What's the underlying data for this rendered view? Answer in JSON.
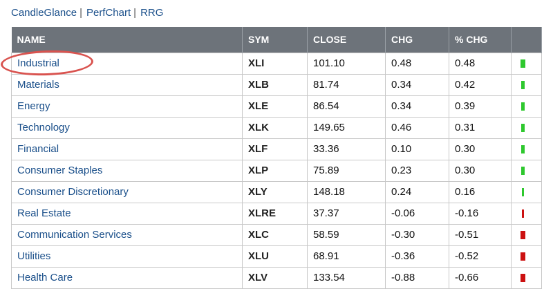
{
  "nav": {
    "links": [
      "CandleGlance",
      "PerfChart",
      "RRG"
    ],
    "separator": "|"
  },
  "table": {
    "headers": {
      "name": "NAME",
      "sym": "SYM",
      "close": "CLOSE",
      "chg": "CHG",
      "pchg": "% CHG"
    },
    "rows": [
      {
        "name": "Industrial",
        "sym": "XLI",
        "close": "101.10",
        "chg": "0.48",
        "pchg": "0.48",
        "color": "#2ec82e"
      },
      {
        "name": "Materials",
        "sym": "XLB",
        "close": "81.74",
        "chg": "0.34",
        "pchg": "0.42",
        "color": "#2ec82e"
      },
      {
        "name": "Energy",
        "sym": "XLE",
        "close": "86.54",
        "chg": "0.34",
        "pchg": "0.39",
        "color": "#2ec82e"
      },
      {
        "name": "Technology",
        "sym": "XLK",
        "close": "149.65",
        "chg": "0.46",
        "pchg": "0.31",
        "color": "#2ec82e"
      },
      {
        "name": "Financial",
        "sym": "XLF",
        "close": "33.36",
        "chg": "0.10",
        "pchg": "0.30",
        "color": "#2ec82e"
      },
      {
        "name": "Consumer Staples",
        "sym": "XLP",
        "close": "75.89",
        "chg": "0.23",
        "pchg": "0.30",
        "color": "#2ec82e"
      },
      {
        "name": "Consumer Discretionary",
        "sym": "XLY",
        "close": "148.18",
        "chg": "0.24",
        "pchg": "0.16",
        "color": "#2ec82e"
      },
      {
        "name": "Real Estate",
        "sym": "XLRE",
        "close": "37.37",
        "chg": "-0.06",
        "pchg": "-0.16",
        "color": "#cc1111"
      },
      {
        "name": "Communication Services",
        "sym": "XLC",
        "close": "58.59",
        "chg": "-0.30",
        "pchg": "-0.51",
        "color": "#cc1111"
      },
      {
        "name": "Utilities",
        "sym": "XLU",
        "close": "68.91",
        "chg": "-0.36",
        "pchg": "-0.52",
        "color": "#cc1111"
      },
      {
        "name": "Health Care",
        "sym": "XLV",
        "close": "133.54",
        "chg": "-0.88",
        "pchg": "-0.66",
        "color": "#cc1111"
      }
    ]
  },
  "annotation": {
    "highlighted_row": "Industrial",
    "ring_color": "#d9534f"
  }
}
